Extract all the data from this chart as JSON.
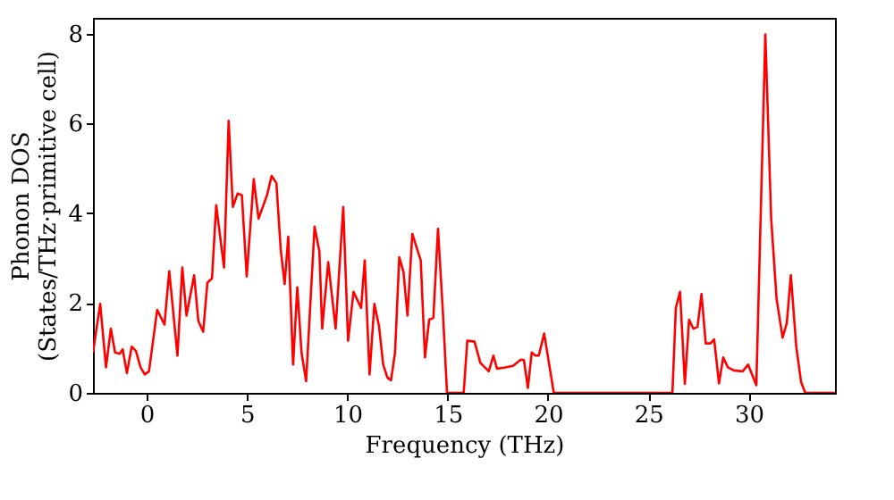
{
  "chart_data": {
    "type": "line",
    "xlabel": "Frequency (THz)",
    "ylabel": "Phonon DOS\n(States/THz·primitive cell)",
    "xlim": [
      -2.67,
      34.3
    ],
    "ylim": [
      0,
      8.35
    ],
    "xticks": [
      0,
      5,
      10,
      15,
      20,
      25,
      30
    ],
    "yticks": [
      0,
      2,
      4,
      6,
      8
    ],
    "grid": false,
    "line_style": "solid",
    "series": [
      {
        "color": "#ff0000",
        "x": [
          -2.67,
          -2.31,
          -2.02,
          -1.78,
          -1.57,
          -1.34,
          -1.19,
          -0.98,
          -0.74,
          -0.53,
          -0.3,
          -0.09,
          0.12,
          0.53,
          0.89,
          1.13,
          1.54,
          1.78,
          1.99,
          2.37,
          2.58,
          2.82,
          3.03,
          3.26,
          3.47,
          3.86,
          4.09,
          4.3,
          4.54,
          4.75,
          4.99,
          5.34,
          5.58,
          6.0,
          6.23,
          6.47,
          6.68,
          6.88,
          7.06,
          7.3,
          7.51,
          7.72,
          7.95,
          8.37,
          8.61,
          8.75,
          9.05,
          9.42,
          9.8,
          10.04,
          10.31,
          10.69,
          10.87,
          11.11,
          11.35,
          11.58,
          11.79,
          12.0,
          12.18,
          12.38,
          12.59,
          12.8,
          13.0,
          13.24,
          13.66,
          13.87,
          14.08,
          14.29,
          14.52,
          14.76,
          14.97,
          15.8,
          15.98,
          16.34,
          16.63,
          17.05,
          17.28,
          17.46,
          17.82,
          18.26,
          18.65,
          18.8,
          19.0,
          19.19,
          19.37,
          19.54,
          19.81,
          20.29,
          26.2,
          26.37,
          26.58,
          26.82,
          27.03,
          27.24,
          27.45,
          27.65,
          27.86,
          28.1,
          28.28,
          28.52,
          28.73,
          28.96,
          29.26,
          29.7,
          29.97,
          30.38,
          30.83,
          31.12,
          31.39,
          31.69,
          31.9,
          32.1,
          32.37,
          32.61,
          32.82,
          34.3
        ],
        "values": [
          0.9,
          1.98,
          0.57,
          1.43,
          0.9,
          0.87,
          0.97,
          0.44,
          1.03,
          0.93,
          0.57,
          0.41,
          0.48,
          1.85,
          1.52,
          2.71,
          0.83,
          2.79,
          1.72,
          2.62,
          1.6,
          1.36,
          2.45,
          2.55,
          4.18,
          2.79,
          6.06,
          4.14,
          4.44,
          4.4,
          2.59,
          4.76,
          3.88,
          4.4,
          4.83,
          4.67,
          3.21,
          2.42,
          3.48,
          0.63,
          2.35,
          0.9,
          0.26,
          3.7,
          3.15,
          1.43,
          2.91,
          1.43,
          4.14,
          1.16,
          2.25,
          1.89,
          2.95,
          0.41,
          1.98,
          1.49,
          0.63,
          0.34,
          0.28,
          0.9,
          3.02,
          2.69,
          1.72,
          3.54,
          2.95,
          0.79,
          1.63,
          1.67,
          3.65,
          1.83,
          0,
          0,
          1.16,
          1.14,
          0.67,
          0.48,
          0.83,
          0.54,
          0.56,
          0.6,
          0.74,
          0.73,
          0.11,
          0.9,
          0.83,
          0.83,
          1.32,
          0,
          0,
          1.89,
          2.25,
          0.2,
          1.63,
          1.43,
          1.47,
          2.2,
          1.1,
          1.1,
          1.19,
          0.21,
          0.79,
          0.57,
          0.5,
          0.48,
          0.63,
          0.17,
          7.98,
          3.88,
          2.09,
          1.23,
          1.56,
          2.62,
          1.03,
          0.24,
          0,
          0
        ]
      }
    ]
  }
}
